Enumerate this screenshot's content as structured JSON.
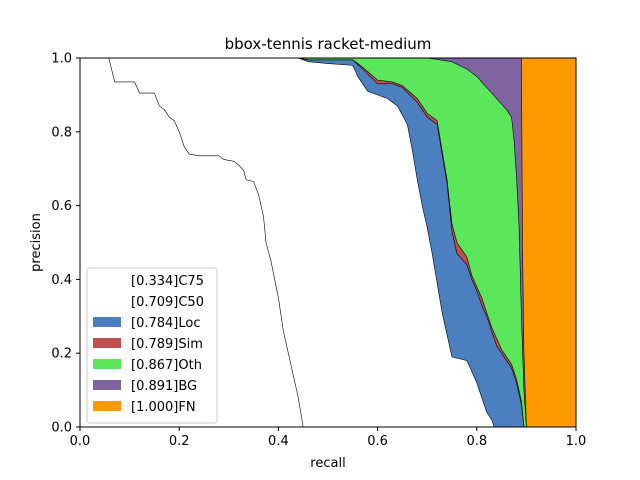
{
  "chart_data": {
    "type": "area",
    "title": "bbox-tennis racket-medium",
    "xlabel": "recall",
    "ylabel": "precision",
    "xlim": [
      0.0,
      1.0
    ],
    "ylim": [
      0.0,
      1.0
    ],
    "xticks": [
      "0.0",
      "0.2",
      "0.4",
      "0.6",
      "0.8",
      "1.0"
    ],
    "yticks": [
      "0.0",
      "0.2",
      "0.4",
      "0.6",
      "0.8",
      "1.0"
    ],
    "grid": false,
    "legend_position": "lower-left",
    "series": [
      {
        "name": "[0.334]C75",
        "color": "#ffffff",
        "points": [
          [
            0.0,
            1.0
          ],
          [
            0.058,
            1.0
          ],
          [
            0.07,
            0.935
          ],
          [
            0.11,
            0.935
          ],
          [
            0.12,
            0.905
          ],
          [
            0.15,
            0.905
          ],
          [
            0.16,
            0.87
          ],
          [
            0.17,
            0.86
          ],
          [
            0.18,
            0.84
          ],
          [
            0.19,
            0.83
          ],
          [
            0.2,
            0.8
          ],
          [
            0.21,
            0.76
          ],
          [
            0.22,
            0.74
          ],
          [
            0.24,
            0.735
          ],
          [
            0.28,
            0.735
          ],
          [
            0.29,
            0.725
          ],
          [
            0.31,
            0.72
          ],
          [
            0.32,
            0.71
          ],
          [
            0.33,
            0.695
          ],
          [
            0.335,
            0.67
          ],
          [
            0.35,
            0.665
          ],
          [
            0.36,
            0.63
          ],
          [
            0.37,
            0.57
          ],
          [
            0.375,
            0.5
          ],
          [
            0.385,
            0.45
          ],
          [
            0.4,
            0.35
          ],
          [
            0.41,
            0.26
          ],
          [
            0.42,
            0.2
          ],
          [
            0.43,
            0.14
          ],
          [
            0.44,
            0.08
          ],
          [
            0.445,
            0.04
          ],
          [
            0.45,
            0.0
          ]
        ]
      },
      {
        "name": "[0.709]C50",
        "color": "#ffffff",
        "points": [
          [
            0.0,
            1.0
          ],
          [
            0.44,
            1.0
          ],
          [
            0.46,
            0.99
          ],
          [
            0.5,
            0.985
          ],
          [
            0.55,
            0.98
          ],
          [
            0.56,
            0.95
          ],
          [
            0.58,
            0.91
          ],
          [
            0.6,
            0.9
          ],
          [
            0.62,
            0.89
          ],
          [
            0.64,
            0.87
          ],
          [
            0.66,
            0.82
          ],
          [
            0.67,
            0.75
          ],
          [
            0.68,
            0.67
          ],
          [
            0.69,
            0.6
          ],
          [
            0.7,
            0.54
          ],
          [
            0.71,
            0.47
          ],
          [
            0.72,
            0.39
          ],
          [
            0.73,
            0.31
          ],
          [
            0.74,
            0.25
          ],
          [
            0.75,
            0.19
          ],
          [
            0.78,
            0.18
          ],
          [
            0.79,
            0.15
          ],
          [
            0.8,
            0.12
          ],
          [
            0.81,
            0.08
          ],
          [
            0.82,
            0.04
          ],
          [
            0.83,
            0.02
          ],
          [
            0.835,
            0.0
          ]
        ]
      },
      {
        "name": "[0.784]Loc",
        "color": "#4c7fbf",
        "points": [
          [
            0.0,
            1.0
          ],
          [
            0.44,
            1.0
          ],
          [
            0.46,
            0.995
          ],
          [
            0.55,
            0.995
          ],
          [
            0.57,
            0.97
          ],
          [
            0.6,
            0.93
          ],
          [
            0.63,
            0.93
          ],
          [
            0.65,
            0.92
          ],
          [
            0.68,
            0.88
          ],
          [
            0.7,
            0.84
          ],
          [
            0.72,
            0.82
          ],
          [
            0.74,
            0.66
          ],
          [
            0.75,
            0.53
          ],
          [
            0.76,
            0.47
          ],
          [
            0.78,
            0.44
          ],
          [
            0.79,
            0.4
          ],
          [
            0.8,
            0.37
          ],
          [
            0.81,
            0.33
          ],
          [
            0.82,
            0.3
          ],
          [
            0.83,
            0.26
          ],
          [
            0.84,
            0.22
          ],
          [
            0.85,
            0.2
          ],
          [
            0.86,
            0.18
          ],
          [
            0.87,
            0.16
          ],
          [
            0.88,
            0.12
          ],
          [
            0.89,
            0.06
          ],
          [
            0.895,
            0.0
          ]
        ]
      },
      {
        "name": "[0.789]Sim",
        "color": "#c0504d",
        "points": [
          [
            0.0,
            1.0
          ],
          [
            0.44,
            1.0
          ],
          [
            0.46,
            0.995
          ],
          [
            0.55,
            0.995
          ],
          [
            0.57,
            0.975
          ],
          [
            0.6,
            0.94
          ],
          [
            0.63,
            0.935
          ],
          [
            0.65,
            0.925
          ],
          [
            0.68,
            0.89
          ],
          [
            0.7,
            0.85
          ],
          [
            0.72,
            0.83
          ],
          [
            0.74,
            0.67
          ],
          [
            0.75,
            0.55
          ],
          [
            0.76,
            0.5
          ],
          [
            0.78,
            0.46
          ],
          [
            0.79,
            0.41
          ],
          [
            0.8,
            0.38
          ],
          [
            0.81,
            0.35
          ],
          [
            0.82,
            0.31
          ],
          [
            0.83,
            0.27
          ],
          [
            0.84,
            0.24
          ],
          [
            0.85,
            0.21
          ],
          [
            0.86,
            0.19
          ],
          [
            0.87,
            0.17
          ],
          [
            0.88,
            0.13
          ],
          [
            0.89,
            0.07
          ],
          [
            0.895,
            0.0
          ]
        ]
      },
      {
        "name": "[0.867]Oth",
        "color": "#5ce65c",
        "points": [
          [
            0.0,
            1.0
          ],
          [
            0.44,
            1.0
          ],
          [
            0.6,
            1.0
          ],
          [
            0.7,
            1.0
          ],
          [
            0.75,
            0.99
          ],
          [
            0.78,
            0.97
          ],
          [
            0.8,
            0.95
          ],
          [
            0.82,
            0.92
          ],
          [
            0.84,
            0.89
          ],
          [
            0.86,
            0.86
          ],
          [
            0.87,
            0.84
          ],
          [
            0.875,
            0.78
          ],
          [
            0.88,
            0.68
          ],
          [
            0.885,
            0.55
          ],
          [
            0.89,
            0.3
          ],
          [
            0.895,
            0.1
          ],
          [
            0.9,
            0.0
          ]
        ]
      },
      {
        "name": "[0.891]BG",
        "color": "#8064a2",
        "points": [
          [
            0.0,
            1.0
          ],
          [
            0.89,
            1.0
          ],
          [
            0.892,
            0.5
          ],
          [
            0.895,
            0.2
          ],
          [
            0.9,
            0.0
          ]
        ]
      },
      {
        "name": "[1.000]FN",
        "color": "#ff9900",
        "points": [
          [
            0.0,
            1.0
          ],
          [
            1.0,
            1.0
          ],
          [
            1.0,
            0.0
          ]
        ]
      }
    ]
  }
}
